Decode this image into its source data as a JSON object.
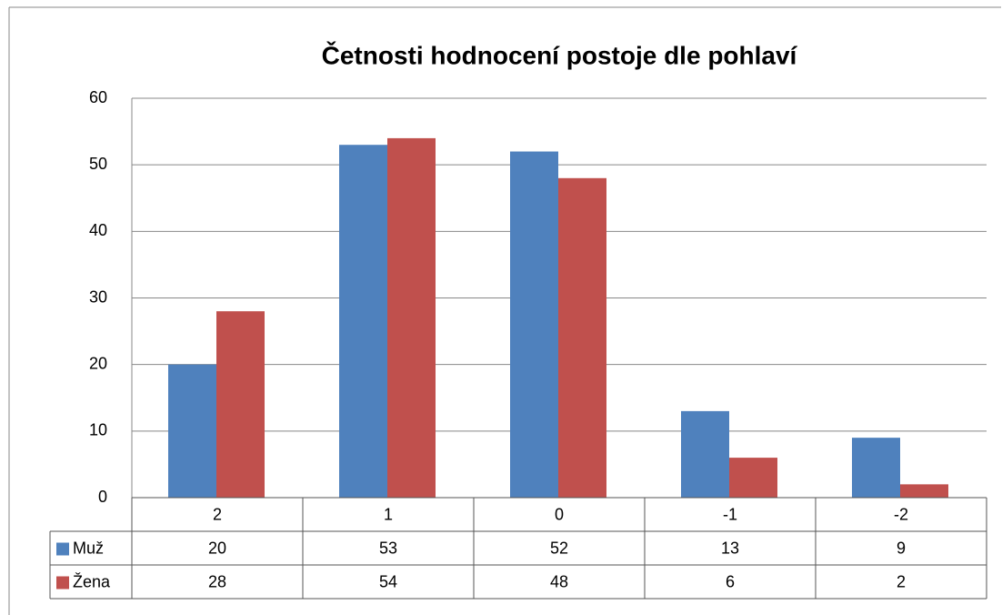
{
  "chart_data": {
    "type": "bar",
    "title": "Četnosti hodnocení postoje dle pohlaví",
    "categories": [
      "2",
      "1",
      "0",
      "-1",
      "-2"
    ],
    "series": [
      {
        "name": "Muž",
        "color": "#4f81bd",
        "values": [
          20,
          53,
          52,
          13,
          9
        ]
      },
      {
        "name": "Žena",
        "color": "#c0504d",
        "values": [
          28,
          54,
          48,
          6,
          2
        ]
      }
    ],
    "ylim": [
      0,
      60
    ],
    "yticks": [
      0,
      10,
      20,
      30,
      40,
      50,
      60
    ],
    "grid": true
  }
}
